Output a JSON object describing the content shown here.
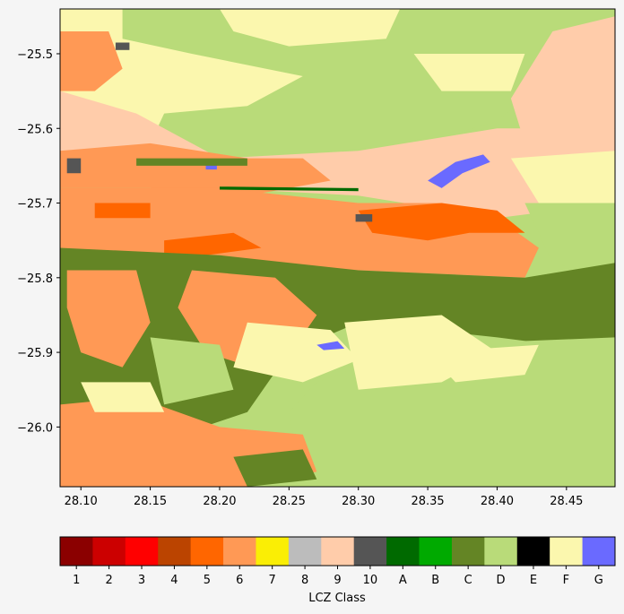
{
  "chart_data": {
    "type": "heatmap",
    "title": "",
    "xlabel": "",
    "ylabel": "",
    "xlim": [
      28.085,
      28.485
    ],
    "ylim": [
      -26.08,
      -25.44
    ],
    "x_ticks": [
      "28.10",
      "28.15",
      "28.20",
      "28.25",
      "28.30",
      "28.35",
      "28.40",
      "28.45"
    ],
    "x_tick_values": [
      28.1,
      28.15,
      28.2,
      28.25,
      28.3,
      28.35,
      28.4,
      28.45
    ],
    "y_ticks": [
      "−25.5",
      "−25.6",
      "−25.7",
      "−25.8",
      "−25.9",
      "−26.0"
    ],
    "y_tick_values": [
      -25.5,
      -25.6,
      -25.7,
      -25.8,
      -25.9,
      -26.0
    ],
    "colorbar": {
      "label": "LCZ Class",
      "classes": [
        {
          "label": "1",
          "color": "#8b0000"
        },
        {
          "label": "2",
          "color": "#cc0000"
        },
        {
          "label": "3",
          "color": "#ff0000"
        },
        {
          "label": "4",
          "color": "#bb4400"
        },
        {
          "label": "5",
          "color": "#ff6600"
        },
        {
          "label": "6",
          "color": "#ff9955"
        },
        {
          "label": "7",
          "color": "#faee05"
        },
        {
          "label": "8",
          "color": "#bcbcbc"
        },
        {
          "label": "9",
          "color": "#ffccaa"
        },
        {
          "label": "10",
          "color": "#555555"
        },
        {
          "label": "A",
          "color": "#006a00"
        },
        {
          "label": "B",
          "color": "#00aa00"
        },
        {
          "label": "C",
          "color": "#648525"
        },
        {
          "label": "D",
          "color": "#b9db79"
        },
        {
          "label": "E",
          "color": "#000000"
        },
        {
          "label": "F",
          "color": "#fbf7ae"
        },
        {
          "label": "G",
          "color": "#6a6aff"
        }
      ]
    },
    "regions": [
      {
        "class": "F",
        "points": [
          [
            28.085,
            -25.44
          ],
          [
            28.3,
            -25.44
          ],
          [
            28.27,
            -25.56
          ],
          [
            28.2,
            -25.6
          ],
          [
            28.085,
            -25.62
          ]
        ]
      },
      {
        "class": "D",
        "points": [
          [
            28.13,
            -25.44
          ],
          [
            28.485,
            -25.44
          ],
          [
            28.485,
            -25.48
          ],
          [
            28.44,
            -25.53
          ],
          [
            28.4,
            -25.59
          ],
          [
            28.33,
            -25.63
          ],
          [
            28.23,
            -25.64
          ],
          [
            28.15,
            -25.62
          ],
          [
            28.16,
            -25.58
          ],
          [
            28.22,
            -25.57
          ],
          [
            28.26,
            -25.53
          ],
          [
            28.18,
            -25.5
          ],
          [
            28.13,
            -25.48
          ]
        ]
      },
      {
        "class": "F",
        "points": [
          [
            28.2,
            -25.44
          ],
          [
            28.33,
            -25.44
          ],
          [
            28.32,
            -25.48
          ],
          [
            28.25,
            -25.49
          ],
          [
            28.21,
            -25.47
          ]
        ]
      },
      {
        "class": "9",
        "points": [
          [
            28.44,
            -25.47
          ],
          [
            28.485,
            -25.45
          ],
          [
            28.485,
            -25.6
          ],
          [
            28.42,
            -25.62
          ],
          [
            28.41,
            -25.56
          ]
        ]
      },
      {
        "class": "F",
        "points": [
          [
            28.34,
            -25.5
          ],
          [
            28.42,
            -25.5
          ],
          [
            28.41,
            -25.55
          ],
          [
            28.36,
            -25.55
          ]
        ]
      },
      {
        "class": "6",
        "points": [
          [
            28.085,
            -25.47
          ],
          [
            28.12,
            -25.47
          ],
          [
            28.13,
            -25.52
          ],
          [
            28.11,
            -25.55
          ],
          [
            28.085,
            -25.55
          ]
        ]
      },
      {
        "class": "9",
        "points": [
          [
            28.085,
            -25.55
          ],
          [
            28.14,
            -25.58
          ],
          [
            28.2,
            -25.64
          ],
          [
            28.3,
            -25.63
          ],
          [
            28.4,
            -25.6
          ],
          [
            28.485,
            -25.6
          ],
          [
            28.485,
            -25.7
          ],
          [
            28.4,
            -25.72
          ],
          [
            28.3,
            -25.69
          ],
          [
            28.2,
            -25.68
          ],
          [
            28.085,
            -25.66
          ]
        ]
      },
      {
        "class": "6",
        "points": [
          [
            28.085,
            -25.63
          ],
          [
            28.15,
            -25.62
          ],
          [
            28.22,
            -25.64
          ],
          [
            28.26,
            -25.64
          ],
          [
            28.28,
            -25.67
          ],
          [
            28.22,
            -25.69
          ],
          [
            28.15,
            -25.68
          ],
          [
            28.085,
            -25.68
          ]
        ]
      },
      {
        "class": "F",
        "points": [
          [
            28.41,
            -25.64
          ],
          [
            28.485,
            -25.63
          ],
          [
            28.485,
            -25.72
          ],
          [
            28.43,
            -25.7
          ]
        ]
      },
      {
        "class": "6",
        "points": [
          [
            28.085,
            -25.68
          ],
          [
            28.2,
            -25.68
          ],
          [
            28.3,
            -25.7
          ],
          [
            28.36,
            -25.7
          ],
          [
            28.4,
            -25.72
          ],
          [
            28.43,
            -25.76
          ],
          [
            28.42,
            -25.8
          ],
          [
            28.3,
            -25.79
          ],
          [
            28.2,
            -25.78
          ],
          [
            28.085,
            -25.76
          ]
        ]
      },
      {
        "class": "5",
        "points": [
          [
            28.3,
            -25.71
          ],
          [
            28.36,
            -25.7
          ],
          [
            28.4,
            -25.71
          ],
          [
            28.42,
            -25.74
          ],
          [
            28.38,
            -25.74
          ],
          [
            28.35,
            -25.75
          ],
          [
            28.31,
            -25.74
          ]
        ]
      },
      {
        "class": "5",
        "points": [
          [
            28.16,
            -25.75
          ],
          [
            28.21,
            -25.74
          ],
          [
            28.23,
            -25.76
          ],
          [
            28.19,
            -25.77
          ],
          [
            28.16,
            -25.77
          ]
        ]
      },
      {
        "class": "5",
        "points": [
          [
            28.11,
            -25.7
          ],
          [
            28.15,
            -25.7
          ],
          [
            28.15,
            -25.72
          ],
          [
            28.11,
            -25.72
          ]
        ]
      },
      {
        "class": "D",
        "points": [
          [
            28.42,
            -25.7
          ],
          [
            28.485,
            -25.7
          ],
          [
            28.485,
            -25.8
          ],
          [
            28.44,
            -25.78
          ]
        ]
      },
      {
        "class": "C",
        "points": [
          [
            28.085,
            -25.76
          ],
          [
            28.2,
            -25.77
          ],
          [
            28.3,
            -25.79
          ],
          [
            28.42,
            -25.8
          ],
          [
            28.485,
            -25.78
          ],
          [
            28.485,
            -25.9
          ],
          [
            28.4,
            -25.88
          ],
          [
            28.3,
            -25.86
          ],
          [
            28.25,
            -25.9
          ],
          [
            28.22,
            -25.98
          ],
          [
            28.14,
            -26.03
          ],
          [
            28.085,
            -26.02
          ]
        ]
      },
      {
        "class": "6",
        "points": [
          [
            28.09,
            -25.79
          ],
          [
            28.14,
            -25.79
          ],
          [
            28.15,
            -25.86
          ],
          [
            28.13,
            -25.92
          ],
          [
            28.1,
            -25.9
          ],
          [
            28.09,
            -25.84
          ]
        ]
      },
      {
        "class": "6",
        "points": [
          [
            28.18,
            -25.79
          ],
          [
            28.24,
            -25.8
          ],
          [
            28.27,
            -25.85
          ],
          [
            28.24,
            -25.93
          ],
          [
            28.19,
            -25.9
          ],
          [
            28.17,
            -25.84
          ]
        ]
      },
      {
        "class": "F",
        "points": [
          [
            28.22,
            -25.86
          ],
          [
            28.28,
            -25.87
          ],
          [
            28.3,
            -25.91
          ],
          [
            28.26,
            -25.94
          ],
          [
            28.21,
            -25.92
          ]
        ]
      },
      {
        "class": "D",
        "points": [
          [
            28.3,
            -25.92
          ],
          [
            28.35,
            -25.89
          ],
          [
            28.485,
            -25.88
          ],
          [
            28.485,
            -26.08
          ],
          [
            28.26,
            -26.08
          ],
          [
            28.25,
            -25.98
          ],
          [
            28.27,
            -25.94
          ]
        ]
      },
      {
        "class": "F",
        "points": [
          [
            28.29,
            -25.86
          ],
          [
            28.36,
            -25.85
          ],
          [
            28.4,
            -25.9
          ],
          [
            28.36,
            -25.94
          ],
          [
            28.3,
            -25.95
          ]
        ]
      },
      {
        "class": "F",
        "points": [
          [
            28.35,
            -25.9
          ],
          [
            28.43,
            -25.89
          ],
          [
            28.42,
            -25.93
          ],
          [
            28.37,
            -25.94
          ]
        ]
      },
      {
        "class": "6",
        "points": [
          [
            28.085,
            -25.97
          ],
          [
            28.14,
            -25.96
          ],
          [
            28.2,
            -26.0
          ],
          [
            28.26,
            -26.01
          ],
          [
            28.27,
            -26.06
          ],
          [
            28.22,
            -26.08
          ],
          [
            28.085,
            -26.08
          ]
        ]
      },
      {
        "class": "F",
        "points": [
          [
            28.1,
            -25.94
          ],
          [
            28.15,
            -25.94
          ],
          [
            28.16,
            -25.98
          ],
          [
            28.11,
            -25.98
          ]
        ]
      },
      {
        "class": "D",
        "points": [
          [
            28.15,
            -25.88
          ],
          [
            28.2,
            -25.89
          ],
          [
            28.21,
            -25.95
          ],
          [
            28.16,
            -25.97
          ]
        ]
      },
      {
        "class": "C",
        "points": [
          [
            28.21,
            -26.04
          ],
          [
            28.26,
            -26.03
          ],
          [
            28.27,
            -26.07
          ],
          [
            28.22,
            -26.08
          ]
        ]
      },
      {
        "class": "G",
        "points": [
          [
            28.35,
            -25.67
          ],
          [
            28.37,
            -25.645
          ],
          [
            28.39,
            -25.635
          ],
          [
            28.395,
            -25.645
          ],
          [
            28.375,
            -25.66
          ],
          [
            28.36,
            -25.68
          ]
        ]
      },
      {
        "class": "G",
        "points": [
          [
            28.27,
            -25.89
          ],
          [
            28.285,
            -25.885
          ],
          [
            28.29,
            -25.895
          ],
          [
            28.275,
            -25.897
          ]
        ]
      },
      {
        "class": "G",
        "points": [
          [
            28.19,
            -25.645
          ],
          [
            28.198,
            -25.645
          ],
          [
            28.198,
            -25.655
          ],
          [
            28.19,
            -25.655
          ]
        ]
      },
      {
        "class": "10",
        "points": [
          [
            28.09,
            -25.64
          ],
          [
            28.1,
            -25.64
          ],
          [
            28.1,
            -25.66
          ],
          [
            28.09,
            -25.66
          ]
        ]
      },
      {
        "class": "10",
        "points": [
          [
            28.125,
            -25.485
          ],
          [
            28.135,
            -25.485
          ],
          [
            28.135,
            -25.495
          ],
          [
            28.125,
            -25.495
          ]
        ]
      },
      {
        "class": "10",
        "points": [
          [
            28.298,
            -25.715
          ],
          [
            28.31,
            -25.715
          ],
          [
            28.31,
            -25.725
          ],
          [
            28.298,
            -25.725
          ]
        ]
      },
      {
        "class": "C",
        "points": [
          [
            28.14,
            -25.64
          ],
          [
            28.22,
            -25.64
          ],
          [
            28.22,
            -25.65
          ],
          [
            28.14,
            -25.65
          ]
        ]
      },
      {
        "class": "A",
        "points": [
          [
            28.2,
            -25.678
          ],
          [
            28.3,
            -25.68
          ],
          [
            28.3,
            -25.684
          ],
          [
            28.2,
            -25.682
          ]
        ]
      }
    ]
  }
}
